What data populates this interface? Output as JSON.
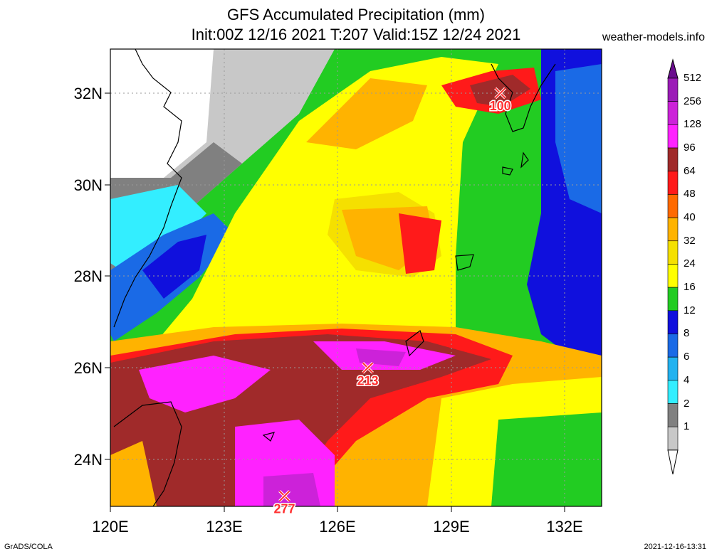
{
  "title": {
    "line1": "GFS Accumulated Precipitation (mm)",
    "line2": "Init:00Z 12/16 2021 T:207 Valid:15Z 12/24 2021"
  },
  "credit": "weather-models.info",
  "footer": {
    "left": "GrADS/COLA",
    "right": "2021-12-16-13:31"
  },
  "axes": {
    "lat_labels": [
      "32N",
      "30N",
      "28N",
      "26N",
      "24N"
    ],
    "lon_labels": [
      "120E",
      "123E",
      "126E",
      "129E",
      "132E"
    ]
  },
  "colorbar": {
    "labels": [
      "512",
      "256",
      "128",
      "96",
      "64",
      "48",
      "40",
      "32",
      "24",
      "16",
      "12",
      "8",
      "6",
      "4",
      "2",
      "1"
    ],
    "colors": [
      "#6a0d8e",
      "#9b1bb7",
      "#cc22d9",
      "#ff22ff",
      "#a02a2a",
      "#ff1a1a",
      "#ff6a00",
      "#ffb300",
      "#f5e000",
      "#ffff00",
      "#22cc22",
      "#1010dd",
      "#1a6ae6",
      "#22b2f0",
      "#33eeff",
      "#808080",
      "#c8c8c8",
      "#ffffff"
    ]
  },
  "markers": [
    {
      "label": "100",
      "lat": 32.0,
      "lon": 130.3
    },
    {
      "label": "213",
      "lat": 26.0,
      "lon": 126.8
    },
    {
      "label": "277",
      "lat": 23.2,
      "lon": 124.6
    }
  ],
  "colors": {
    "marker": "#ff3030",
    "grid": "#9a9a9a",
    "coast": "#000000"
  }
}
